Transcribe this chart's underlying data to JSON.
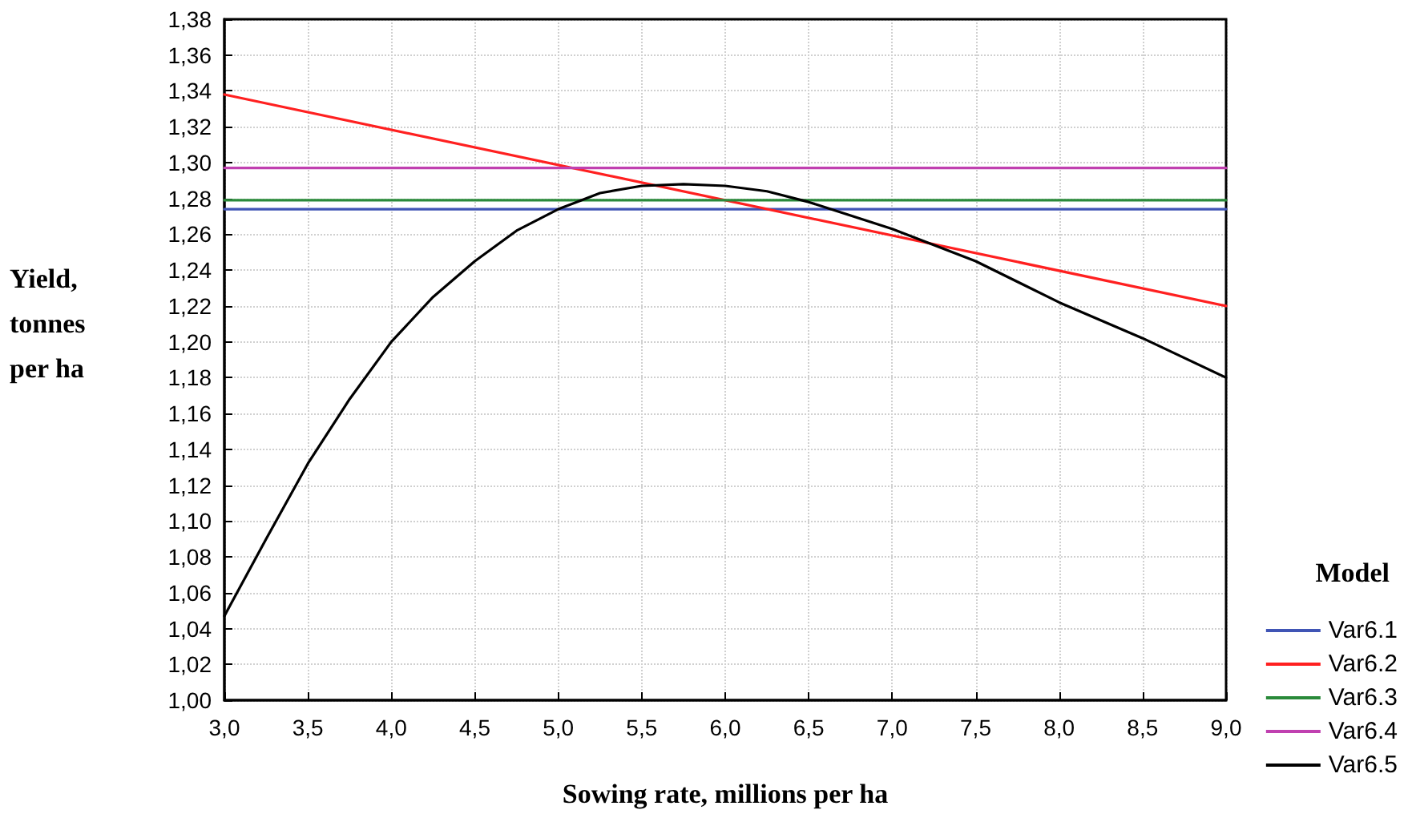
{
  "chart_data": {
    "type": "line",
    "xlabel": "Sowing rate, millions per ha",
    "ylabel": "Yield,\ntonnes\nper ha",
    "legend_title": "Model",
    "legend": "bottom right",
    "grid": true,
    "marker": "none",
    "line_style": "solid",
    "xlim": [
      3.0,
      9.0
    ],
    "xticks": [
      {
        "value": 3.0,
        "label": "3,0"
      },
      {
        "value": 3.5,
        "label": "3,5"
      },
      {
        "value": 4.0,
        "label": "4,0"
      },
      {
        "value": 4.5,
        "label": "4,5"
      },
      {
        "value": 5.0,
        "label": "5,0"
      },
      {
        "value": 5.5,
        "label": "5,5"
      },
      {
        "value": 6.0,
        "label": "6,0"
      },
      {
        "value": 6.5,
        "label": "6,5"
      },
      {
        "value": 7.0,
        "label": "7,0"
      },
      {
        "value": 7.5,
        "label": "7,5"
      },
      {
        "value": 8.0,
        "label": "8,0"
      },
      {
        "value": 8.5,
        "label": "8,5"
      },
      {
        "value": 9.0,
        "label": "9,0"
      }
    ],
    "ylim": [
      1.0,
      1.38
    ],
    "yticks": [
      {
        "value": 1.0,
        "label": "1,00"
      },
      {
        "value": 1.02,
        "label": "1,02"
      },
      {
        "value": 1.04,
        "label": "1,04"
      },
      {
        "value": 1.06,
        "label": "1,06"
      },
      {
        "value": 1.08,
        "label": "1,08"
      },
      {
        "value": 1.1,
        "label": "1,10"
      },
      {
        "value": 1.12,
        "label": "1,12"
      },
      {
        "value": 1.14,
        "label": "1,14"
      },
      {
        "value": 1.16,
        "label": "1,16"
      },
      {
        "value": 1.18,
        "label": "1,18"
      },
      {
        "value": 1.2,
        "label": "1,20"
      },
      {
        "value": 1.22,
        "label": "1,22"
      },
      {
        "value": 1.24,
        "label": "1,24"
      },
      {
        "value": 1.26,
        "label": "1,26"
      },
      {
        "value": 1.28,
        "label": "1,28"
      },
      {
        "value": 1.3,
        "label": "1,30"
      },
      {
        "value": 1.32,
        "label": "1,32"
      },
      {
        "value": 1.34,
        "label": "1,34"
      },
      {
        "value": 1.36,
        "label": "1,36"
      },
      {
        "value": 1.38,
        "label": "1,38"
      }
    ],
    "series": [
      {
        "name": "Var6.1",
        "color": "#4055b5",
        "x": [
          3.0,
          9.0
        ],
        "values": [
          1.274,
          1.274
        ]
      },
      {
        "name": "Var6.2",
        "color": "#ff2020",
        "x": [
          3.0,
          9.0
        ],
        "values": [
          1.338,
          1.22
        ]
      },
      {
        "name": "Var6.3",
        "color": "#2a8a3a",
        "x": [
          3.0,
          9.0
        ],
        "values": [
          1.279,
          1.279
        ]
      },
      {
        "name": "Var6.4",
        "color": "#c040b0",
        "x": [
          3.0,
          9.0
        ],
        "values": [
          1.297,
          1.297
        ]
      },
      {
        "name": "Var6.5",
        "color": "#000000",
        "x": [
          3.0,
          3.25,
          3.5,
          3.75,
          4.0,
          4.25,
          4.5,
          4.75,
          5.0,
          5.25,
          5.5,
          5.75,
          6.0,
          6.25,
          6.5,
          7.0,
          7.5,
          8.0,
          8.5,
          9.0
        ],
        "values": [
          1.047,
          1.09,
          1.132,
          1.168,
          1.2,
          1.225,
          1.245,
          1.262,
          1.274,
          1.283,
          1.287,
          1.288,
          1.287,
          1.284,
          1.278,
          1.263,
          1.245,
          1.222,
          1.202,
          1.18
        ]
      }
    ]
  }
}
